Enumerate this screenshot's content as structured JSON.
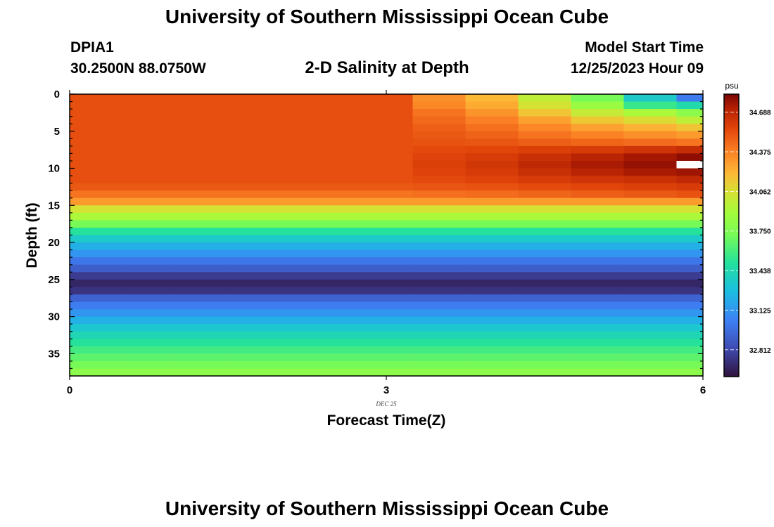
{
  "header": {
    "title": "University of Southern Mississippi Ocean Cube",
    "station": "DPIA1",
    "coords": "30.2500N  88.0750W",
    "plot_title": "2-D Salinity at Depth",
    "start_label": "Model Start Time",
    "start_value": "12/25/2023 Hour 09"
  },
  "footer": {
    "title": "University of Southern Mississippi Ocean Cube"
  },
  "chart_data": {
    "type": "heatmap",
    "title": "2-D Salinity at Depth",
    "xlabel": "Forecast Time(Z)",
    "ylabel": "Depth (ft)",
    "date_label": "DEC 25",
    "x_ticks": [
      "0",
      "3",
      "6"
    ],
    "y_ticks": [
      "0",
      "5",
      "10",
      "15",
      "20",
      "25",
      "30",
      "35"
    ],
    "xlim": [
      0,
      6
    ],
    "ylim": [
      0,
      38
    ],
    "colorbar": {
      "unit": "psu",
      "min": 32.6,
      "max": 34.83,
      "ticks": [
        "34.688",
        "34.375",
        "34.062",
        "33.750",
        "33.438",
        "33.125",
        "32.812"
      ]
    },
    "columns": [
      {
        "x0": 0.0,
        "x1": 0.5
      },
      {
        "x0": 0.5,
        "x1": 1.0
      },
      {
        "x0": 1.0,
        "x1": 1.5
      },
      {
        "x0": 1.5,
        "x1": 2.0
      },
      {
        "x0": 2.0,
        "x1": 2.5
      },
      {
        "x0": 2.5,
        "x1": 3.25
      },
      {
        "x0": 3.25,
        "x1": 3.75
      },
      {
        "x0": 3.75,
        "x1": 4.25
      },
      {
        "x0": 4.25,
        "x1": 4.75
      },
      {
        "x0": 4.75,
        "x1": 5.25
      },
      {
        "x0": 5.25,
        "x1": 5.75
      },
      {
        "x0": 5.75,
        "x1": 6.0
      }
    ],
    "layers": [
      {
        "d0": 0,
        "d1": 1,
        "base": 34.53,
        "surf": [
          34.53,
          34.53,
          34.53,
          34.53,
          34.53,
          34.53,
          34.33,
          34.2,
          33.98,
          33.72,
          33.35,
          33.02
        ]
      },
      {
        "d0": 1,
        "d1": 2,
        "base": 34.53,
        "surf": [
          34.53,
          34.53,
          34.53,
          34.53,
          34.53,
          34.53,
          34.36,
          34.25,
          34.05,
          33.85,
          33.55,
          33.45
        ]
      },
      {
        "d0": 2,
        "d1": 3,
        "base": 34.53,
        "surf": [
          34.53,
          34.53,
          34.53,
          34.53,
          34.53,
          34.53,
          34.42,
          34.32,
          34.16,
          34.0,
          33.92,
          33.8
        ]
      },
      {
        "d0": 3,
        "d1": 4,
        "base": 34.53,
        "surf": [
          34.53,
          34.53,
          34.53,
          34.53,
          34.53,
          34.53,
          34.45,
          34.38,
          34.28,
          34.15,
          34.08,
          33.98
        ]
      },
      {
        "d0": 4,
        "d1": 5,
        "base": 34.53,
        "surf": [
          34.53,
          34.53,
          34.53,
          34.53,
          34.53,
          34.53,
          34.48,
          34.43,
          34.36,
          34.28,
          34.22,
          34.16
        ]
      },
      {
        "d0": 5,
        "d1": 6,
        "base": 34.53,
        "surf": [
          34.53,
          34.53,
          34.53,
          34.53,
          34.53,
          34.53,
          34.5,
          34.47,
          34.42,
          34.37,
          34.33,
          34.3
        ]
      },
      {
        "d0": 6,
        "d1": 7,
        "base": 34.53,
        "surf": [
          34.53,
          34.53,
          34.53,
          34.53,
          34.53,
          34.53,
          34.52,
          34.51,
          34.48,
          34.46,
          34.44,
          34.42
        ]
      },
      {
        "d0": 7,
        "d1": 8,
        "base": 34.53,
        "surf": [
          34.53,
          34.53,
          34.53,
          34.53,
          34.53,
          34.53,
          34.55,
          34.56,
          34.58,
          34.6,
          34.63,
          34.66
        ]
      },
      {
        "d0": 8,
        "d1": 9,
        "base": 34.53,
        "surf": [
          34.53,
          34.53,
          34.53,
          34.53,
          34.53,
          34.53,
          34.57,
          34.6,
          34.65,
          34.7,
          34.75,
          34.79
        ]
      },
      {
        "d0": 9,
        "d1": 10,
        "base": 34.53,
        "surf": [
          34.53,
          34.53,
          34.53,
          34.53,
          34.53,
          34.53,
          34.58,
          34.62,
          34.68,
          34.74,
          34.78,
          null
        ]
      },
      {
        "d0": 10,
        "d1": 11,
        "base": 34.53,
        "surf": [
          34.53,
          34.53,
          34.53,
          34.53,
          34.53,
          34.53,
          34.57,
          34.6,
          34.65,
          34.7,
          34.74,
          34.76
        ]
      },
      {
        "d0": 11,
        "d1": 12,
        "base": 34.53,
        "surf": [
          34.53,
          34.53,
          34.53,
          34.53,
          34.53,
          34.53,
          34.55,
          34.57,
          34.6,
          34.63,
          34.65,
          34.68
        ]
      },
      {
        "d0": 12,
        "d1": 13,
        "base": 34.5,
        "surf": [
          34.5,
          34.5,
          34.5,
          34.5,
          34.5,
          34.5,
          34.51,
          34.52,
          34.54,
          34.56,
          34.58,
          34.6
        ]
      },
      {
        "d0": 13,
        "d1": 14,
        "base": 34.42,
        "surf": [
          34.42,
          34.42,
          34.42,
          34.42,
          34.42,
          34.42,
          34.43,
          34.44,
          34.46,
          34.48,
          34.5,
          34.52
        ]
      },
      {
        "d0": 14,
        "d1": 15,
        "base": 34.3,
        "surf": null
      },
      {
        "d0": 15,
        "d1": 16,
        "base": 34.05,
        "surf": null
      },
      {
        "d0": 16,
        "d1": 17,
        "base": 33.92,
        "surf": null
      },
      {
        "d0": 17,
        "d1": 18,
        "base": 33.72,
        "surf": null
      },
      {
        "d0": 18,
        "d1": 19,
        "base": 33.5,
        "surf": null
      },
      {
        "d0": 19,
        "d1": 20,
        "base": 33.35,
        "surf": null
      },
      {
        "d0": 20,
        "d1": 21,
        "base": 33.22,
        "surf": null
      },
      {
        "d0": 21,
        "d1": 22,
        "base": 33.12,
        "surf": null
      },
      {
        "d0": 22,
        "d1": 23,
        "base": 33.0,
        "surf": null
      },
      {
        "d0": 23,
        "d1": 24,
        "base": 32.9,
        "surf": null
      },
      {
        "d0": 24,
        "d1": 25,
        "base": 32.76,
        "surf": null
      },
      {
        "d0": 25,
        "d1": 26,
        "base": 32.68,
        "surf": null
      },
      {
        "d0": 26,
        "d1": 27,
        "base": 32.73,
        "surf": null
      },
      {
        "d0": 27,
        "d1": 28,
        "base": 32.92,
        "surf": null
      },
      {
        "d0": 28,
        "d1": 29,
        "base": 33.03,
        "surf": null
      },
      {
        "d0": 29,
        "d1": 30,
        "base": 33.12,
        "surf": null
      },
      {
        "d0": 30,
        "d1": 31,
        "base": 33.22,
        "surf": null
      },
      {
        "d0": 31,
        "d1": 32,
        "base": 33.33,
        "surf": null
      },
      {
        "d0": 32,
        "d1": 33,
        "base": 33.42,
        "surf": null
      },
      {
        "d0": 33,
        "d1": 34,
        "base": 33.5,
        "surf": null
      },
      {
        "d0": 34,
        "d1": 35,
        "base": 33.58,
        "surf": null
      },
      {
        "d0": 35,
        "d1": 36,
        "base": 33.65,
        "surf": null
      },
      {
        "d0": 36,
        "d1": 37,
        "base": 33.72,
        "surf": null
      },
      {
        "d0": 37,
        "d1": 38,
        "base": 33.8,
        "surf": null
      }
    ]
  }
}
